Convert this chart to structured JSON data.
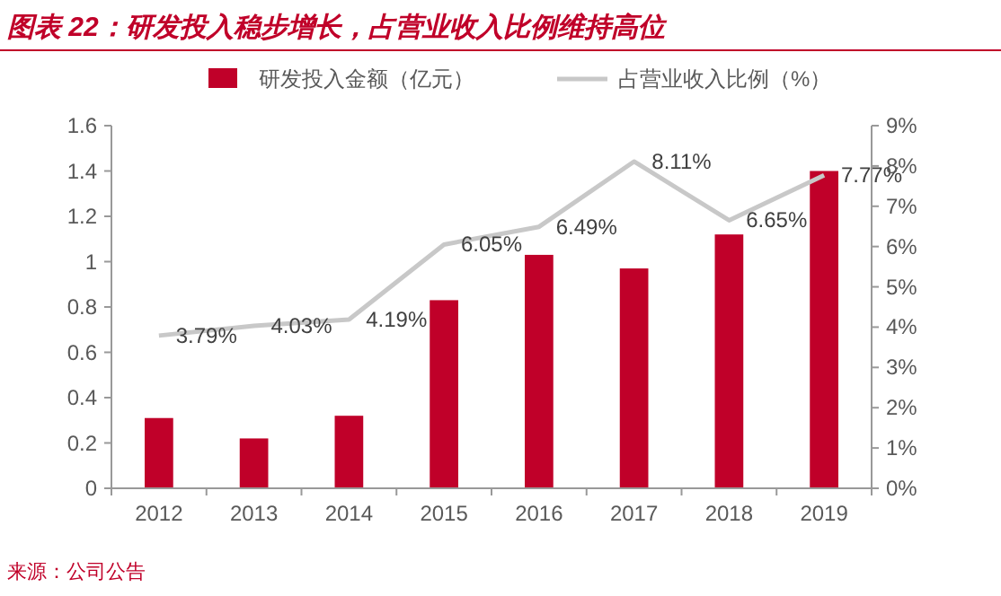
{
  "chart_data": {
    "type": "bar",
    "title": "图表 22：研发投入稳步增长，占营业收入比例维持高位",
    "categories": [
      "2012",
      "2013",
      "2014",
      "2015",
      "2016",
      "2017",
      "2018",
      "2019"
    ],
    "series": [
      {
        "name": "研发投入金额（亿元）",
        "color": "#c00029",
        "values": [
          0.31,
          0.22,
          0.32,
          0.83,
          1.03,
          0.97,
          1.12,
          1.4
        ]
      },
      {
        "name": "占营业收入比例（%）",
        "type": "line",
        "axis": "y2",
        "color": "#c8c8c8",
        "values": [
          3.79,
          4.03,
          4.19,
          6.05,
          6.49,
          8.11,
          6.65,
          7.77
        ],
        "value_labels": [
          "3.79%",
          "4.03%",
          "4.19%",
          "6.05%",
          "6.49%",
          "8.11%",
          "6.65%",
          "7.77%"
        ]
      }
    ],
    "ylim": [
      0,
      1.6
    ],
    "yticks": [
      0,
      0.2,
      0.4,
      0.6,
      0.8,
      1,
      1.2,
      1.4,
      1.6
    ],
    "y2lim": [
      0,
      9
    ],
    "y2ticks": [
      {
        "value": 0,
        "label": "0%"
      },
      {
        "value": 1,
        "label": "1%"
      },
      {
        "value": 2,
        "label": "2%"
      },
      {
        "value": 3,
        "label": "3%"
      },
      {
        "value": 4,
        "label": "4%"
      },
      {
        "value": 5,
        "label": "5%"
      },
      {
        "value": 6,
        "label": "6%"
      },
      {
        "value": 7,
        "label": "7%"
      },
      {
        "value": 8,
        "label": "8%"
      },
      {
        "value": 9,
        "label": "9%"
      }
    ],
    "legend": "top",
    "grid": false,
    "annotations": [
      "来源：公司公告"
    ]
  }
}
